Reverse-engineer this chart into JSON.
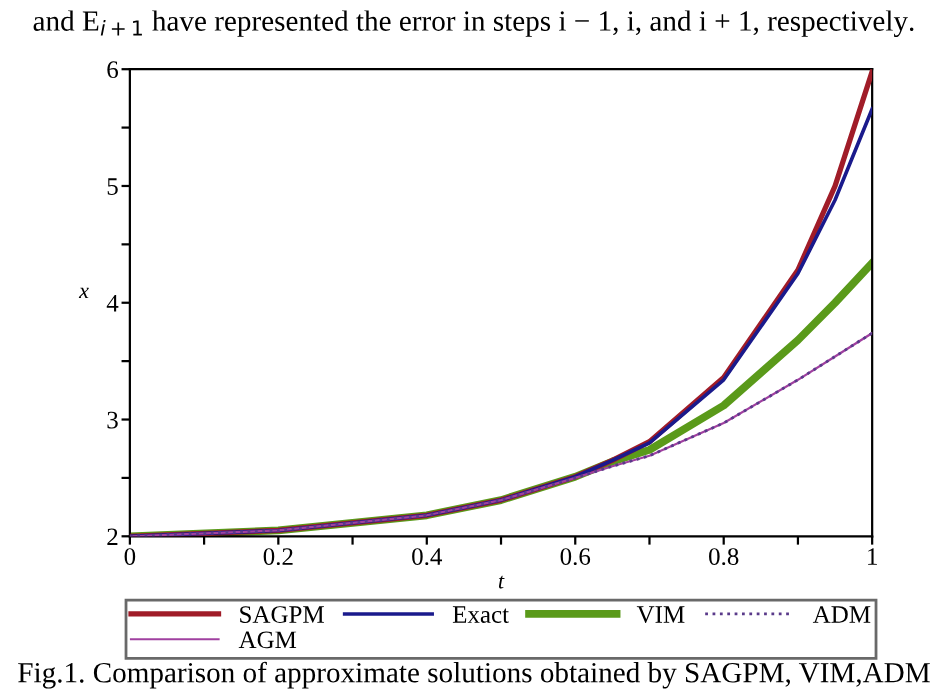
{
  "chart_data": {
    "type": "line",
    "xlabel": "t",
    "ylabel": "x",
    "annotations": [
      "and E$_{i+1}$ have represented the error in steps i − 1, i, and i + 1, respectively.",
      "Fig.1. Comparison of approximate solutions obtained by SAGPM, VIM,ADM"
    ],
    "xlim": [
      0,
      1
    ],
    "ylim": [
      2,
      6
    ],
    "xticks": [
      0,
      {
        "value": 0.1,
        "label": null
      },
      0.2,
      {
        "value": 0.3,
        "label": null
      },
      0.4,
      {
        "value": 0.5,
        "label": null
      },
      0.6,
      {
        "value": 0.7,
        "label": null
      },
      0.8,
      {
        "value": 0.9,
        "label": null
      },
      1
    ],
    "yticks": [
      2,
      {
        "value": 2.5,
        "label": null
      },
      3,
      {
        "value": 3.5,
        "label": null
      },
      4,
      {
        "value": 4.5,
        "label": null
      },
      5,
      {
        "value": 5.5,
        "label": null
      },
      6
    ],
    "grid": false,
    "legend": "bottom",
    "x": [
      0,
      0.2,
      0.4,
      0.5,
      0.6,
      0.65,
      0.7,
      0.8,
      0.9,
      0.95,
      1
    ],
    "series": [
      {
        "name": "SAGPM",
        "color": "#a01c28",
        "values": [
          2.0,
          2.05,
          2.18,
          2.31,
          2.51,
          2.65,
          2.81,
          3.36,
          4.28,
          5.0,
          5.98
        ]
      },
      {
        "name": "Exact",
        "color": "#1a1a8c",
        "values": [
          2.0,
          2.05,
          2.18,
          2.31,
          2.51,
          2.65,
          2.8,
          3.34,
          4.25,
          4.88,
          5.66
        ]
      },
      {
        "name": "VIM",
        "color": "#5a9a1a",
        "values": [
          2.0,
          2.05,
          2.18,
          2.31,
          2.51,
          2.64,
          2.74,
          3.12,
          3.68,
          4.0,
          4.34
        ]
      },
      {
        "name": "ADM",
        "color": "#5a3a8a",
        "line_style": "dotted",
        "values": [
          2.0,
          2.05,
          2.18,
          2.31,
          2.5,
          2.6,
          2.69,
          2.97,
          3.34,
          3.54,
          3.74
        ]
      },
      {
        "name": "AGM",
        "color": "#a040a0",
        "values": [
          2.0,
          2.05,
          2.18,
          2.31,
          2.5,
          2.6,
          2.69,
          2.97,
          3.34,
          3.54,
          3.74
        ]
      }
    ]
  }
}
